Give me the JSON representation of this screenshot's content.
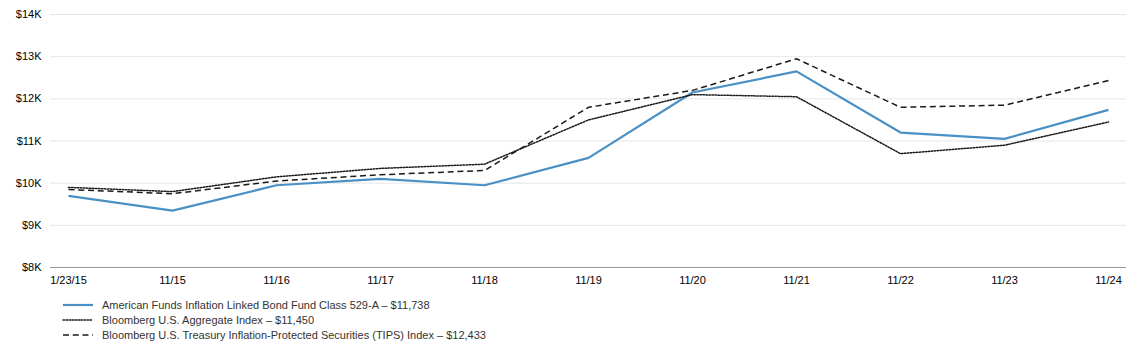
{
  "chart_data": {
    "type": "line",
    "categories": [
      "1/23/15",
      "11/15",
      "11/16",
      "11/17",
      "11/18",
      "11/19",
      "11/20",
      "11/21",
      "11/22",
      "11/23",
      "11/24"
    ],
    "series": [
      {
        "name": "American Funds Inflation Linked Bond Fund Class 529-A – $11,738",
        "color": "#4a90c4",
        "line_style": "solid",
        "values": [
          9700,
          9350,
          9950,
          10100,
          9950,
          10600,
          12150,
          12650,
          11200,
          11050,
          11738
        ]
      },
      {
        "name": "Bloomberg U.S. Aggregate Index – $11,450",
        "color": "#1a1a1a",
        "line_style": "dotted",
        "values": [
          9900,
          9800,
          10150,
          10350,
          10450,
          11500,
          12100,
          12050,
          10700,
          10900,
          11450
        ]
      },
      {
        "name": "Bloomberg U.S. Treasury Inflation-Protected Securities (TIPS) Index – $12,433",
        "color": "#1a1a1a",
        "line_style": "dashed",
        "values": [
          9850,
          9750,
          10050,
          10200,
          10300,
          11800,
          12200,
          12950,
          11800,
          11850,
          12433
        ]
      }
    ],
    "ylim": [
      8000,
      14000
    ],
    "yticks": [
      {
        "value": 8000,
        "label": "$8K"
      },
      {
        "value": 9000,
        "label": "$9K"
      },
      {
        "value": 10000,
        "label": "$10K"
      },
      {
        "value": 11000,
        "label": "$11K"
      },
      {
        "value": 12000,
        "label": "$12K"
      },
      {
        "value": 13000,
        "label": "$13K"
      },
      {
        "value": 14000,
        "label": "$14K"
      }
    ],
    "grid": true,
    "legend": "lower left"
  }
}
